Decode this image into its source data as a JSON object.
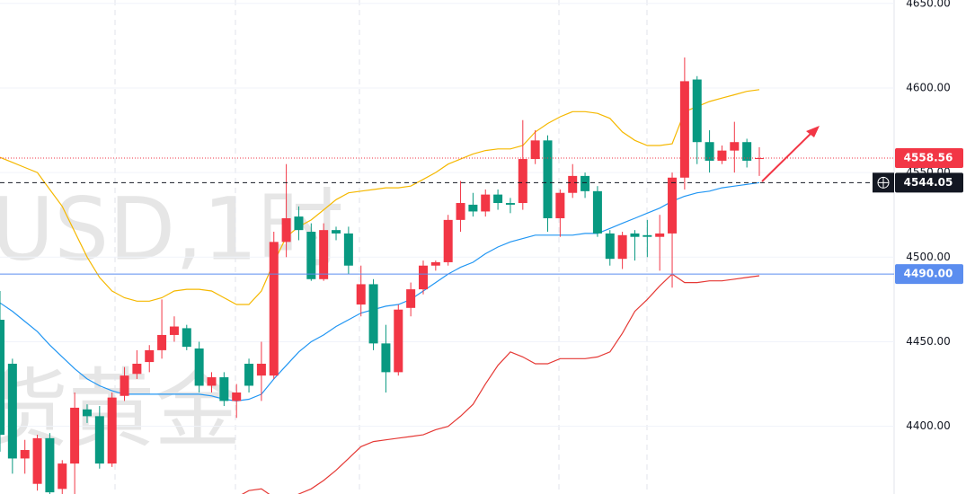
{
  "chart_data": {
    "type": "candlestick",
    "watermark": [
      "USD,1时",
      "货黄金"
    ],
    "ylim": [
      4360,
      4652
    ],
    "yticks": [
      {
        "value": 4400,
        "label": "4400.00"
      },
      {
        "value": 4450,
        "label": "4450.00"
      },
      {
        "value": 4500,
        "label": "4500.00"
      },
      {
        "value": 4550,
        "label": "4550.00"
      },
      {
        "value": 4600,
        "label": "4600.00"
      },
      {
        "value": 4650,
        "label": "4650.00"
      }
    ],
    "grid": true,
    "up_color": "#f23645",
    "down_color": "#089981",
    "open": [
      4463,
      4437,
      4381,
      4366,
      4393,
      4363,
      4378,
      4410,
      4406,
      4378,
      4418,
      4431,
      4438,
      4445,
      4454,
      4458,
      4446,
      4424,
      4429,
      4415,
      4437,
      4430,
      4430,
      4509,
      4524,
      4515,
      4487,
      4516,
      4514,
      4472,
      4484,
      4449,
      4432,
      4470,
      4481,
      4495,
      4497,
      4522,
      4531,
      4527,
      4537,
      4532,
      4532,
      4558,
      4569,
      4523,
      4538,
      4548,
      4539,
      4514,
      4499,
      4514,
      4513,
      4512,
      4514,
      4547,
      4605,
      4568,
      4557,
      4563,
      4568,
      4558
    ],
    "high": [
      4480,
      4440,
      4392,
      4395,
      4396,
      4380,
      4420,
      4413,
      4412,
      4420,
      4435,
      4445,
      4448,
      4475,
      4465,
      4460,
      4450,
      4432,
      4432,
      4425,
      4440,
      4450,
      4515,
      4555,
      4530,
      4520,
      4520,
      4518,
      4518,
      4495,
      4487,
      4460,
      4472,
      4485,
      4498,
      4498,
      4525,
      4545,
      4538,
      4540,
      4540,
      4535,
      4581,
      4575,
      4572,
      4540,
      4555,
      4550,
      4542,
      4516,
      4515,
      4516,
      4522,
      4525,
      4550,
      4618,
      4607,
      4575,
      4566,
      4580,
      4570,
      4565
    ],
    "low": [
      4385,
      4372,
      4372,
      4362,
      4360,
      4358,
      4360,
      4402,
      4375,
      4376,
      4415,
      4428,
      4432,
      4440,
      4450,
      4445,
      4420,
      4420,
      4412,
      4405,
      4420,
      4415,
      4428,
      4500,
      4510,
      4486,
      4486,
      4510,
      4490,
      4465,
      4445,
      4420,
      4430,
      4465,
      4478,
      4492,
      4495,
      4515,
      4524,
      4524,
      4528,
      4526,
      4528,
      4555,
      4515,
      4512,
      4535,
      4535,
      4512,
      4495,
      4493,
      4498,
      4500,
      4492,
      4482,
      4540,
      4555,
      4550,
      4555,
      4550,
      4553,
      4548
    ],
    "close": [
      4395,
      4381,
      4386,
      4393,
      4361,
      4378,
      4411,
      4406,
      4378,
      4417,
      4430,
      4437,
      4445,
      4454,
      4459,
      4447,
      4424,
      4429,
      4415,
      4420,
      4424,
      4437,
      4509,
      4523,
      4516,
      4487,
      4516,
      4514,
      4495,
      4484,
      4449,
      4432,
      4469,
      4481,
      4495,
      4497,
      4522,
      4532,
      4527,
      4537,
      4532,
      4531,
      4558,
      4569,
      4523,
      4538,
      4548,
      4539,
      4514,
      4499,
      4513,
      4512,
      4512,
      4514,
      4547,
      4604,
      4568,
      4557,
      4563,
      4568,
      4557,
      4558.56
    ],
    "bands": [
      {
        "color": "#f5b800",
        "values": [
          4559,
          4556,
          4553,
          4550,
          4540,
          4530,
          4515,
          4500,
          4488,
          4480,
          4476,
          4474,
          4474,
          4476,
          4480,
          4481,
          4481,
          4480,
          4476,
          4472,
          4472,
          4480,
          4497,
          4512,
          4518,
          4522,
          4528,
          4534,
          4538,
          4539,
          4540,
          4541,
          4541,
          4542,
          4546,
          4550,
          4555,
          4558,
          4561,
          4563,
          4564,
          4564,
          4566,
          4574,
          4579,
          4583,
          4586,
          4586,
          4585,
          4582,
          4574,
          4569,
          4566,
          4566,
          4567,
          4586,
          4589,
          4592,
          4594,
          4596,
          4598,
          4599
        ]
      },
      {
        "color": "#2196f3",
        "values": [
          4473,
          4468,
          4462,
          4456,
          4448,
          4441,
          4434,
          4428,
          4424,
          4421,
          4419,
          4419,
          4419,
          4419,
          4419,
          4419,
          4419,
          4418,
          4416,
          4415,
          4416,
          4419,
          4428,
          4436,
          4444,
          4450,
          4454,
          4459,
          4463,
          4467,
          4469,
          4471,
          4472,
          4475,
          4480,
          4485,
          4490,
          4494,
          4497,
          4502,
          4506,
          4509,
          4511,
          4513,
          4513,
          4513,
          4513,
          4514,
          4514,
          4517,
          4520,
          4523,
          4526,
          4529,
          4533,
          4536,
          4538,
          4539,
          4541,
          4542,
          4543,
          4544.05
        ]
      },
      {
        "color": "#e53935",
        "values": [
          null,
          null,
          null,
          null,
          null,
          null,
          null,
          null,
          null,
          null,
          null,
          null,
          null,
          null,
          null,
          null,
          null,
          null,
          null,
          4358,
          4362,
          4363,
          4358,
          4356,
          4360,
          4363,
          4368,
          4374,
          4381,
          4388,
          4391,
          4392,
          4393,
          4394,
          4395,
          4398,
          4400,
          4406,
          4413,
          4425,
          4436,
          4444,
          4441,
          4437,
          4437,
          4440,
          4440,
          4440,
          4441,
          4444,
          4455,
          4468,
          4475,
          4483,
          4490,
          4485,
          4485,
          4486,
          4486,
          4487,
          4488,
          4489
        ]
      }
    ],
    "price_lines": [
      {
        "value": 4558.56,
        "label": "4558.56",
        "color": "#f23645",
        "style": "dotted"
      },
      {
        "value": 4544.05,
        "label": "4544.05",
        "color": "#131722",
        "style": "dashed"
      },
      {
        "value": 4490,
        "label": "4490.00",
        "color": "#5b8def",
        "style": "solid"
      }
    ]
  }
}
